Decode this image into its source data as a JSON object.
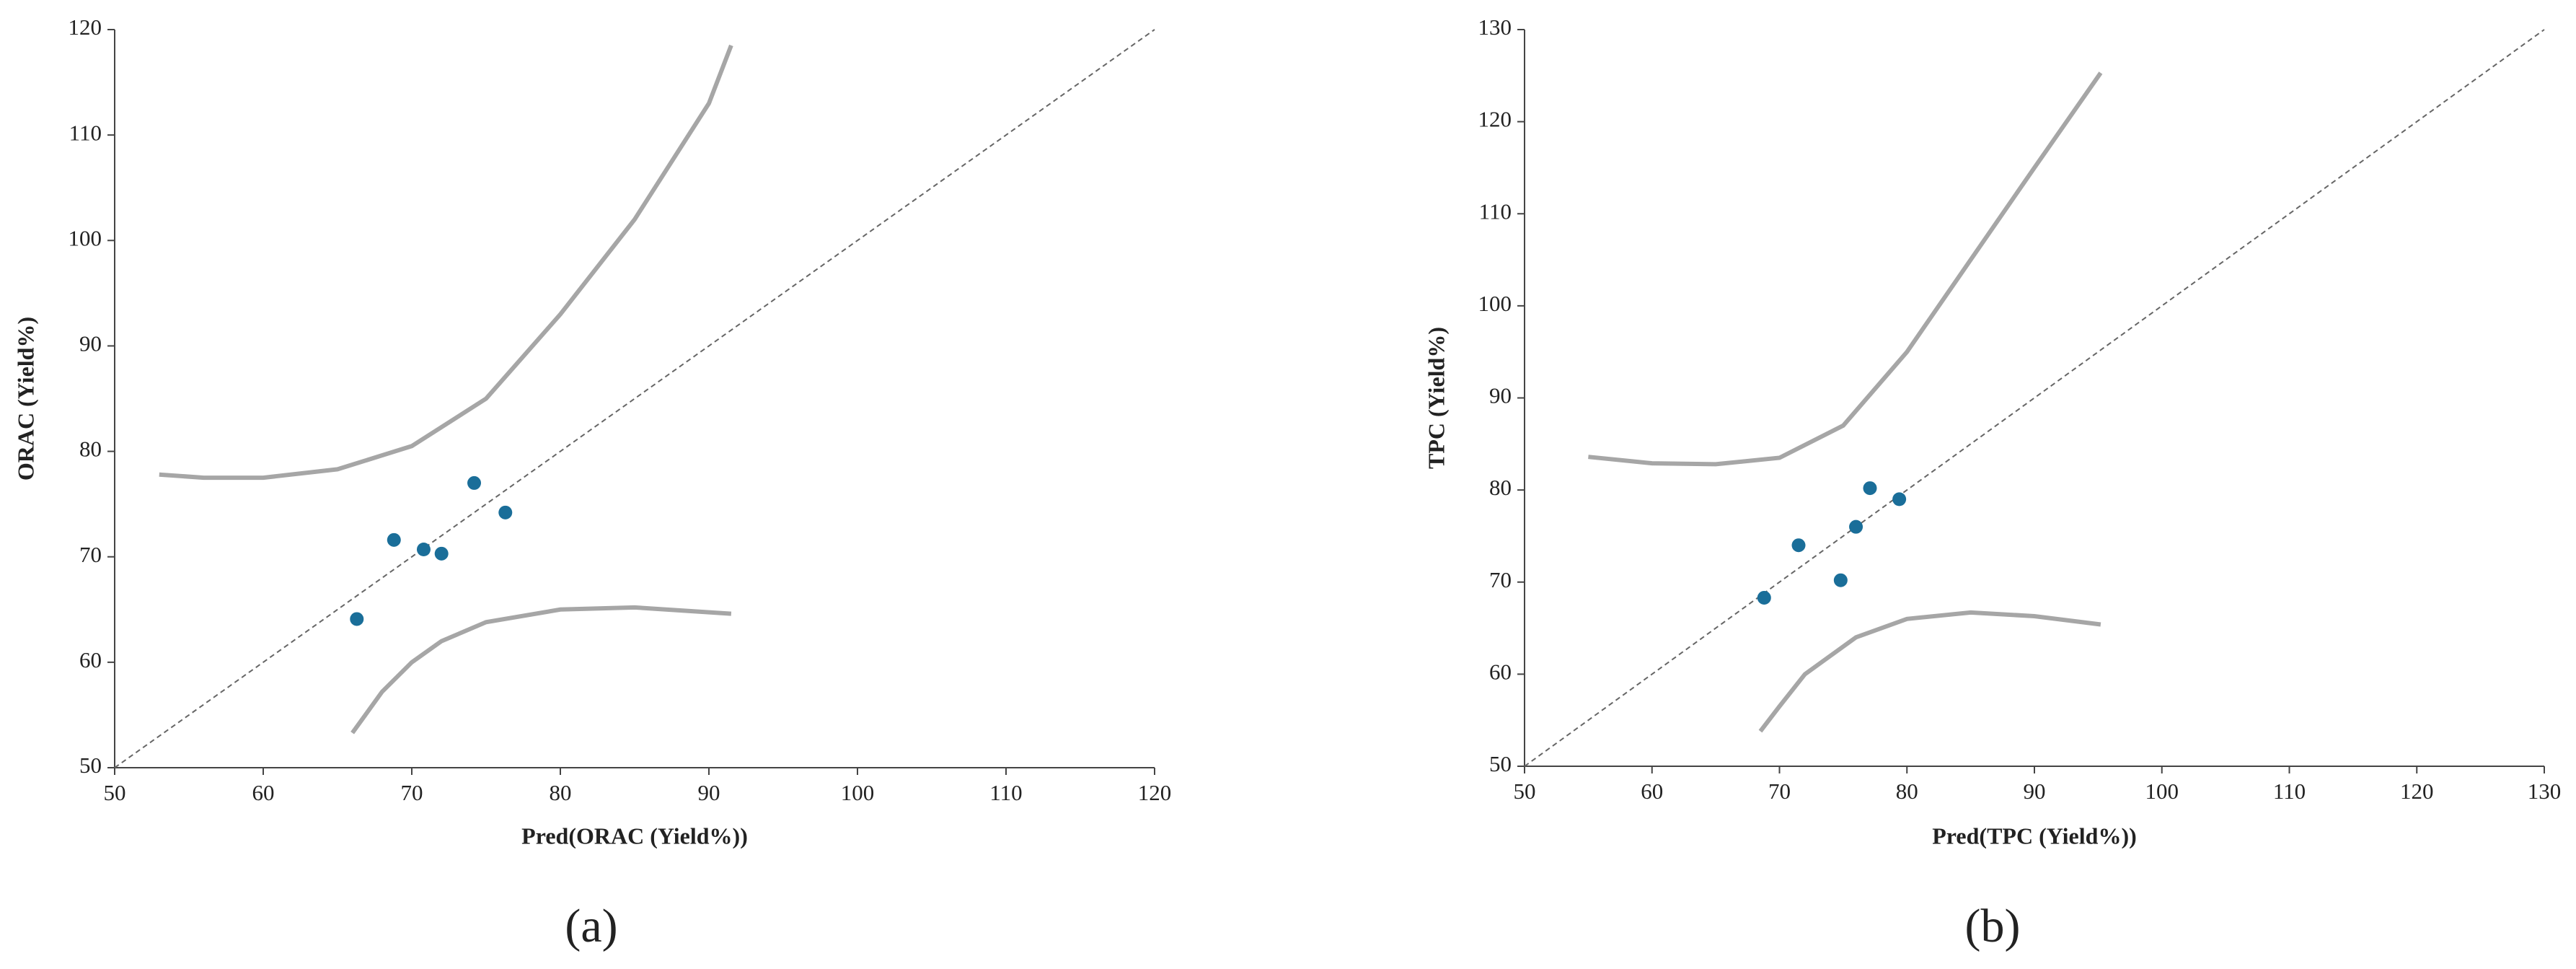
{
  "chart_data": [
    {
      "type": "scatter",
      "label": "(a)",
      "x_label": "Pred(ORAC (Yield%))",
      "y_label": "ORAC (Yield%)",
      "xlim": [
        50,
        120
      ],
      "ylim": [
        50,
        120
      ],
      "xticks": [
        50,
        60,
        70,
        80,
        90,
        100,
        110,
        120
      ],
      "yticks": [
        50,
        60,
        70,
        80,
        90,
        100,
        110,
        120
      ],
      "points": {
        "color": "#1a6e99",
        "x": [
          66.3,
          68.8,
          70.8,
          72.0,
          74.2,
          76.3
        ],
        "y": [
          64.1,
          71.6,
          70.7,
          70.3,
          77.0,
          74.2
        ]
      },
      "reference_line": {
        "color": "#666666",
        "x": [
          50,
          120
        ],
        "y": [
          50,
          120
        ]
      },
      "bands": [
        {
          "color": "#a6a6a6",
          "x": [
            53,
            56,
            60,
            65,
            70,
            75,
            80,
            85,
            90,
            91.5
          ],
          "y": [
            77.8,
            77.5,
            77.5,
            78.3,
            80.5,
            85,
            93,
            102,
            113,
            118.5
          ]
        },
        {
          "color": "#a6a6a6",
          "x": [
            66,
            68,
            70,
            72,
            75,
            80,
            85,
            91.5
          ],
          "y": [
            53.3,
            57.2,
            60,
            62,
            63.8,
            65,
            65.2,
            64.6
          ]
        }
      ]
    },
    {
      "type": "scatter",
      "label": "(b)",
      "x_label": "Pred(TPC (Yield%))",
      "y_label": "TPC (Yield%)",
      "xlim": [
        50,
        130
      ],
      "ylim": [
        50,
        130
      ],
      "xticks": [
        50,
        60,
        70,
        80,
        90,
        100,
        110,
        120,
        130
      ],
      "yticks": [
        50,
        60,
        70,
        80,
        90,
        100,
        110,
        120,
        130
      ],
      "points": {
        "color": "#1a6e99",
        "x": [
          68.8,
          71.5,
          74.8,
          76.0,
          77.1,
          79.4
        ],
        "y": [
          68.3,
          74.0,
          70.2,
          76.0,
          80.2,
          79.0
        ]
      },
      "reference_line": {
        "color": "#666666",
        "x": [
          50,
          130
        ],
        "y": [
          50,
          130
        ]
      },
      "bands": [
        {
          "color": "#a6a6a6",
          "x": [
            55,
            60,
            65,
            70,
            75,
            80,
            85,
            90,
            95.2
          ],
          "y": [
            83.6,
            82.9,
            82.8,
            83.5,
            87,
            95,
            105,
            115,
            125.3
          ]
        },
        {
          "color": "#a6a6a6",
          "x": [
            68.5,
            70,
            72,
            76,
            80,
            85,
            90,
            95.2
          ],
          "y": [
            53.8,
            56.5,
            60,
            64,
            66,
            66.7,
            66.3,
            65.4
          ]
        }
      ]
    }
  ]
}
